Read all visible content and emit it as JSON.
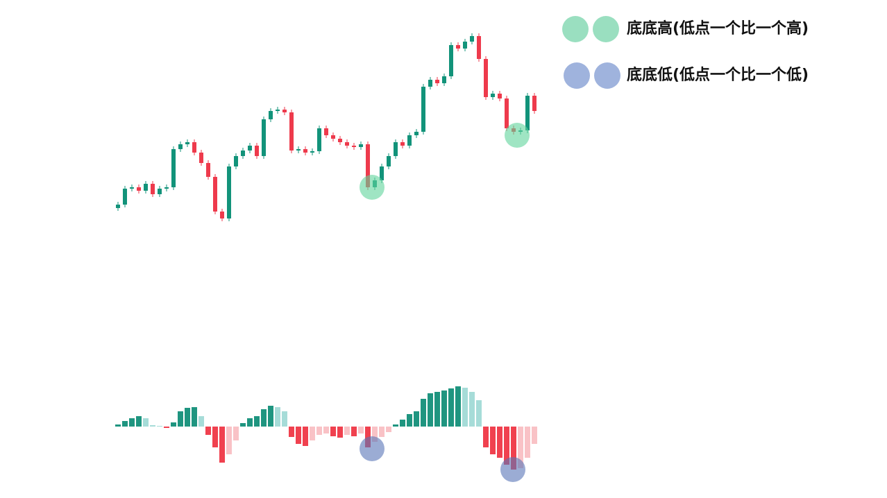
{
  "chart_data": [
    {
      "type": "candlestick",
      "ylim": [
        60,
        380
      ],
      "up_color": "#12937a",
      "down_color": "#ee3a4c",
      "open": [
        100,
        105,
        128,
        130,
        125,
        135,
        120,
        128,
        130,
        185,
        192,
        195,
        180,
        165,
        145,
        95,
        85,
        160,
        175,
        183,
        190,
        175,
        228,
        240,
        242,
        238,
        183,
        185,
        180,
        182,
        215,
        205,
        200,
        195,
        190,
        188,
        192,
        130,
        140,
        160,
        175,
        195,
        190,
        205,
        210,
        275,
        285,
        280,
        290,
        335,
        330,
        340,
        348,
        315,
        260,
        265,
        258,
        215,
        210,
        212,
        262
      ],
      "high": [
        109,
        132,
        134,
        134,
        139,
        139,
        132,
        134,
        189,
        196,
        199,
        199,
        184,
        169,
        149,
        99,
        164,
        179,
        187,
        194,
        194,
        232,
        244,
        246,
        246,
        242,
        189,
        189,
        186,
        219,
        219,
        209,
        204,
        199,
        194,
        196,
        196,
        144,
        164,
        179,
        199,
        199,
        209,
        214,
        279,
        289,
        289,
        294,
        339,
        339,
        344,
        352,
        352,
        319,
        269,
        269,
        262,
        219,
        216,
        266,
        266
      ],
      "low": [
        96,
        101,
        124,
        121,
        121,
        116,
        116,
        124,
        126,
        181,
        188,
        176,
        161,
        141,
        91,
        81,
        81,
        156,
        171,
        179,
        171,
        171,
        224,
        236,
        234,
        179,
        179,
        176,
        176,
        178,
        201,
        196,
        191,
        186,
        184,
        184,
        126,
        126,
        136,
        156,
        171,
        186,
        186,
        201,
        206,
        271,
        276,
        276,
        286,
        326,
        326,
        336,
        311,
        256,
        256,
        254,
        211,
        206,
        206,
        208,
        236
      ],
      "close": [
        105,
        128,
        130,
        125,
        135,
        120,
        128,
        130,
        185,
        192,
        195,
        180,
        165,
        145,
        95,
        85,
        160,
        175,
        183,
        190,
        175,
        228,
        240,
        242,
        238,
        183,
        185,
        180,
        182,
        215,
        205,
        200,
        195,
        190,
        188,
        192,
        130,
        140,
        160,
        175,
        195,
        190,
        205,
        210,
        275,
        285,
        280,
        290,
        335,
        330,
        340,
        348,
        315,
        260,
        265,
        258,
        215,
        210,
        212,
        262,
        240
      ]
    },
    {
      "type": "bar",
      "ylim": [
        -70,
        70
      ],
      "colors": [
        "#1f9580",
        "#a6dcd8",
        "#f0414f",
        "#f9c2c6"
      ],
      "values": [
        3,
        8,
        12,
        15,
        12,
        2,
        1,
        -2,
        6,
        22,
        27,
        28,
        15,
        -12,
        -30,
        -52,
        -40,
        -20,
        5,
        12,
        15,
        25,
        30,
        28,
        22,
        -15,
        -25,
        -28,
        -20,
        -12,
        -10,
        -14,
        -16,
        -12,
        -14,
        -10,
        -30,
        -22,
        -15,
        -8,
        3,
        10,
        18,
        22,
        40,
        48,
        50,
        52,
        55,
        58,
        56,
        50,
        38,
        -30,
        -40,
        -45,
        -55,
        -62,
        -60,
        -45,
        -25
      ]
    }
  ],
  "legend": {
    "items": [
      "底底高(低点一个比一个高)",
      "底底低(低点一个比一个低)"
    ]
  }
}
